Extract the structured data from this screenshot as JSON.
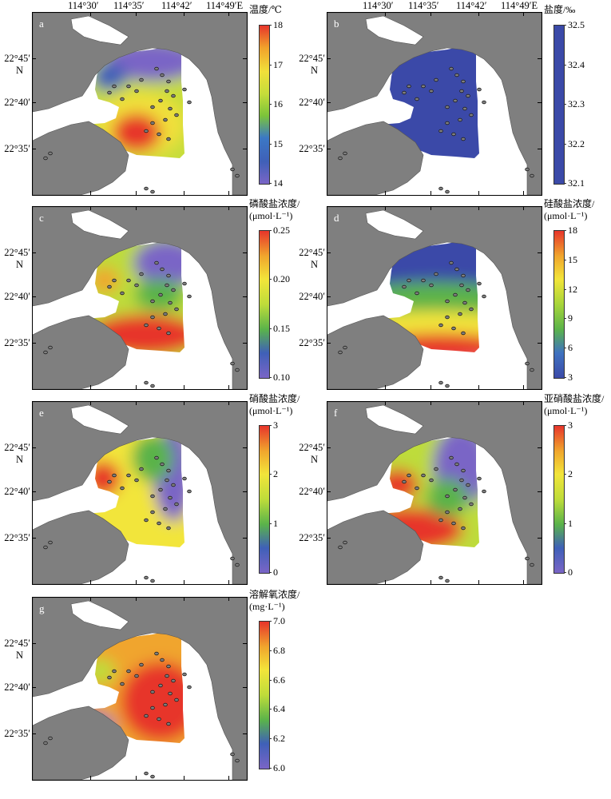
{
  "longitude_labels": [
    "114°30′",
    "114°35′",
    "114°42′",
    "114°49′E"
  ],
  "latitude_labels": [
    "22°45′",
    "22°40′",
    "22°35′"
  ],
  "north_label": "N",
  "colors": {
    "land": "#7f7f7f",
    "sea": "#ffffff",
    "outline": "#000000"
  },
  "panels": [
    {
      "letter": "a",
      "title_lines": [
        "温度/℃"
      ],
      "scale_ticks": [
        "18",
        "17",
        "16",
        "15",
        "14"
      ],
      "scale_min": 14,
      "scale_max": 18,
      "ramp": [
        "#7a65c6",
        "#3f60b8",
        "#3b78c5",
        "#7bc43a",
        "#c6dd3a",
        "#f1e03a",
        "#f1a22b",
        "#e7352b"
      ],
      "field": {
        "type": "hotspot",
        "base": 0.55,
        "bands": [
          0.18,
          0.45,
          0.7,
          0.95
        ]
      }
    },
    {
      "letter": "b",
      "title_lines": [
        "盐度/‰"
      ],
      "scale_ticks": [
        "32.5",
        "32.4",
        "32.3",
        "32.2",
        "32.1"
      ],
      "scale_min": 32.1,
      "scale_max": 32.5,
      "ramp": [
        "#3b4aa8",
        "#3b4aa8"
      ],
      "field": {
        "type": "uniform",
        "bands": [
          0.5
        ]
      }
    },
    {
      "letter": "c",
      "title_lines": [
        "磷酸盐浓度/",
        "(μmol·L⁻¹)"
      ],
      "scale_ticks": [
        "0.25",
        "0.20",
        "0.15",
        "0.10"
      ],
      "scale_min": 0.1,
      "scale_max": 0.25,
      "ramp": [
        "#7a65c6",
        "#3f60b8",
        "#5ab34a",
        "#bedc3a",
        "#f2e53a",
        "#f0a52d",
        "#e7352b"
      ],
      "field": {
        "type": "southhot",
        "bands": [
          0.25,
          0.5,
          0.7,
          0.88
        ]
      }
    },
    {
      "letter": "d",
      "title_lines": [
        "硅酸盐浓度/",
        "(μmol·L⁻¹)"
      ],
      "scale_ticks": [
        "18",
        "15",
        "12",
        "9",
        "6",
        "3"
      ],
      "scale_min": 3,
      "scale_max": 18,
      "ramp": [
        "#3b4aa8",
        "#3f72c0",
        "#5bb34a",
        "#a7d53a",
        "#f2e53a",
        "#f0a52d",
        "#e7352b"
      ],
      "field": {
        "type": "southgrad",
        "bands": [
          0.2,
          0.45,
          0.65,
          0.85
        ]
      }
    },
    {
      "letter": "e",
      "title_lines": [
        "硝酸盐浓度/",
        "(μmol·L⁻¹)"
      ],
      "scale_ticks": [
        "3",
        "2",
        "1",
        "0"
      ],
      "scale_min": 0,
      "scale_max": 3,
      "ramp": [
        "#7a65c6",
        "#3f60b8",
        "#5ab34a",
        "#bedc3a",
        "#f2e53a",
        "#f0a52d",
        "#e7352b"
      ],
      "field": {
        "type": "westhot",
        "bands": [
          0.2,
          0.45,
          0.7,
          0.9
        ]
      }
    },
    {
      "letter": "f",
      "title_lines": [
        "亚硝酸盐浓度/",
        "(μmol·L⁻¹)"
      ],
      "scale_ticks": [
        "3",
        "2",
        "1",
        "0"
      ],
      "scale_min": 0,
      "scale_max": 3,
      "ramp": [
        "#7a65c6",
        "#3f60b8",
        "#5ab34a",
        "#bedc3a",
        "#f2e53a",
        "#f0a52d",
        "#e7352b"
      ],
      "field": {
        "type": "swhot",
        "bands": [
          0.15,
          0.4,
          0.65,
          0.9
        ]
      }
    },
    {
      "letter": "g",
      "title_lines": [
        "溶解氧浓度/",
        "(mg·L⁻¹)"
      ],
      "scale_ticks": [
        "7.0",
        "6.8",
        "6.6",
        "6.4",
        "6.2",
        "6.0"
      ],
      "scale_min": 6.0,
      "scale_max": 7.0,
      "ramp": [
        "#7a65c6",
        "#3f60b8",
        "#5ab34a",
        "#bedc3a",
        "#f2e53a",
        "#f0a52d",
        "#e7352b"
      ],
      "field": {
        "type": "mostlyhot",
        "bands": [
          0.2,
          0.55,
          0.75,
          0.9
        ]
      }
    }
  ]
}
